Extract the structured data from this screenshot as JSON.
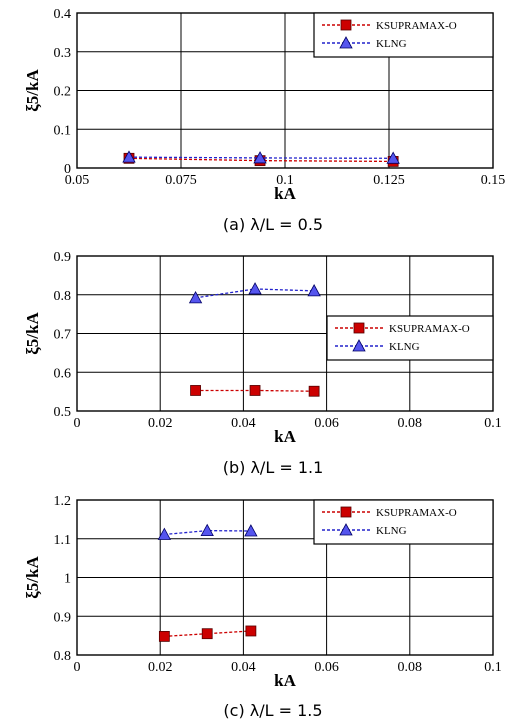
{
  "chart_data": [
    {
      "type": "line",
      "xlabel": "kA",
      "ylabel": "ξ5/kA",
      "caption": "(a) λ/L = 0.5",
      "xlim": [
        0.05,
        0.15
      ],
      "ylim": [
        0,
        0.4
      ],
      "x_ticks": [
        "0.05",
        "0.075",
        "0.1",
        "0.125",
        "0.15"
      ],
      "y_ticks": [
        "0",
        "0.1",
        "0.2",
        "0.3",
        "0.4"
      ],
      "grid": true,
      "legend_position": "top-right",
      "series": [
        {
          "name": "KSUPRAMAX-O",
          "color": "#cc0000",
          "marker": "square",
          "x": [
            0.0625,
            0.094,
            0.126
          ],
          "y": [
            0.025,
            0.019,
            0.017
          ]
        },
        {
          "name": "KLNG",
          "color": "#2222cc",
          "marker": "triangle",
          "x": [
            0.0625,
            0.094,
            0.126
          ],
          "y": [
            0.028,
            0.026,
            0.025
          ]
        }
      ]
    },
    {
      "type": "line",
      "xlabel": "kA",
      "ylabel": "ξ5/kA",
      "caption": "(b) λ/L = 1.1",
      "xlim": [
        0,
        0.1
      ],
      "ylim": [
        0.5,
        0.9
      ],
      "x_ticks": [
        "0",
        "0.02",
        "0.04",
        "0.06",
        "0.08",
        "0.1"
      ],
      "y_ticks": [
        "0.5",
        "0.6",
        "0.7",
        "0.8",
        "0.9"
      ],
      "grid": true,
      "legend_position": "center-right",
      "series": [
        {
          "name": "KSUPRAMAX-O",
          "color": "#cc0000",
          "marker": "square",
          "x": [
            0.0285,
            0.0428,
            0.057
          ],
          "y": [
            0.553,
            0.553,
            0.551
          ]
        },
        {
          "name": "KLNG",
          "color": "#2222cc",
          "marker": "triangle",
          "x": [
            0.0285,
            0.0428,
            0.057
          ],
          "y": [
            0.792,
            0.815,
            0.81
          ]
        }
      ]
    },
    {
      "type": "line",
      "xlabel": "kA",
      "ylabel": "ξ5/kA",
      "caption": "(c) λ/L = 1.5",
      "xlim": [
        0,
        0.1
      ],
      "ylim": [
        0.8,
        1.2
      ],
      "x_ticks": [
        "0",
        "0.02",
        "0.04",
        "0.06",
        "0.08",
        "0.1"
      ],
      "y_ticks": [
        "0.8",
        "0.9",
        "1",
        "1.1",
        "1.2"
      ],
      "grid": true,
      "legend_position": "top-right",
      "series": [
        {
          "name": "KSUPRAMAX-O",
          "color": "#cc0000",
          "marker": "square",
          "x": [
            0.021,
            0.0313,
            0.0418
          ],
          "y": [
            0.848,
            0.855,
            0.862
          ]
        },
        {
          "name": "KLNG",
          "color": "#2222cc",
          "marker": "triangle",
          "x": [
            0.021,
            0.0313,
            0.0418
          ],
          "y": [
            1.111,
            1.121,
            1.12
          ]
        }
      ]
    }
  ]
}
